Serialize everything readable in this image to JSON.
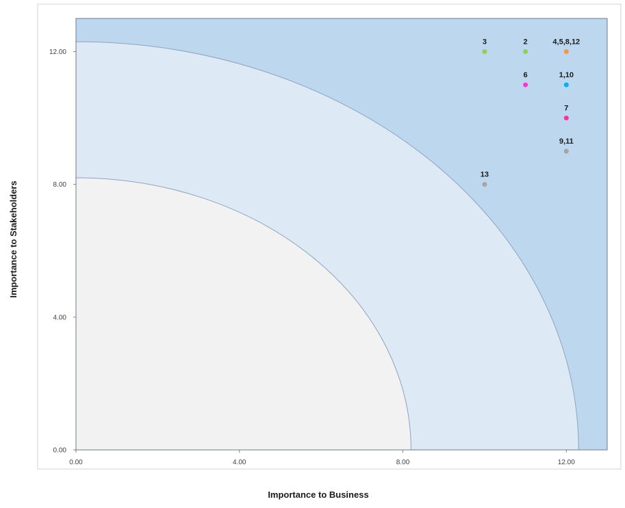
{
  "chart_data": {
    "type": "scatter",
    "title": "",
    "xlabel": "Importance to Business",
    "ylabel": "Importance to Stakeholders",
    "xlim": [
      0,
      13
    ],
    "ylim": [
      0,
      13
    ],
    "x_ticks": [
      0,
      4,
      8,
      12
    ],
    "y_ticks": [
      0,
      4,
      8,
      12
    ],
    "x_tick_labels": [
      "0.00",
      "4.00",
      "8.00",
      "12.00"
    ],
    "y_tick_labels": [
      "0.00",
      "4.00",
      "8.00",
      "12.00"
    ],
    "grid": false,
    "bands": [
      {
        "name": "high",
        "color": "#bdd7ee"
      },
      {
        "name": "medium",
        "outer_radius": 12.3,
        "color": "#dde9f5"
      },
      {
        "name": "low",
        "outer_radius": 8.2,
        "color": "#f2f2f2"
      }
    ],
    "points": [
      {
        "label": "3",
        "x": 10,
        "y": 12,
        "color": "#92d050"
      },
      {
        "label": "2",
        "x": 11,
        "y": 12,
        "color": "#92d050"
      },
      {
        "label": "4,5,8,12",
        "x": 12,
        "y": 12,
        "color": "#f79646"
      },
      {
        "label": "6",
        "x": 11,
        "y": 11,
        "color": "#ff33cc"
      },
      {
        "label": "1,10",
        "x": 12,
        "y": 11,
        "color": "#00b0f0"
      },
      {
        "label": "7",
        "x": 12,
        "y": 10,
        "color": "#ff3399"
      },
      {
        "label": "9,11",
        "x": 12,
        "y": 9,
        "color": "#a5a5a5"
      },
      {
        "label": "13",
        "x": 10,
        "y": 8,
        "color": "#a5a5a5"
      }
    ]
  }
}
